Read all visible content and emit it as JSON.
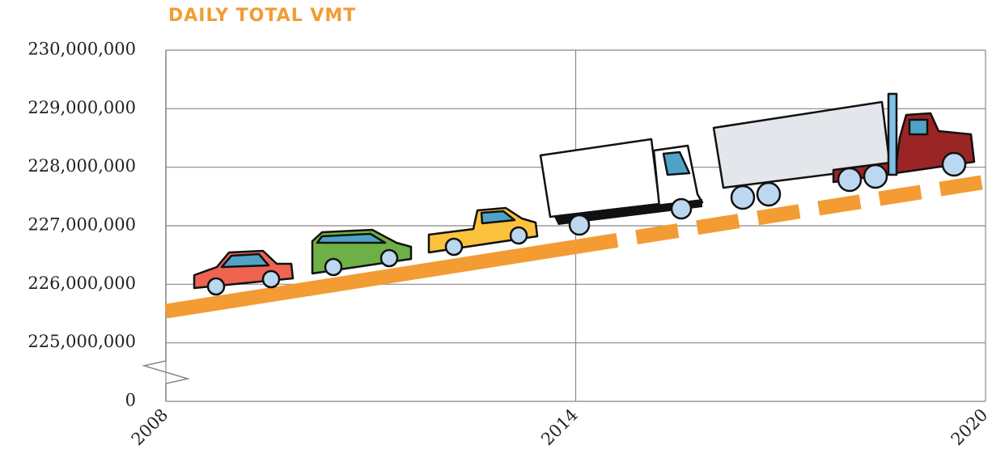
{
  "chart_data": {
    "type": "line",
    "title": "DAILY TOTAL VMT",
    "xlim": [
      2008,
      2020
    ],
    "xticks": [
      2008,
      2014,
      2020
    ],
    "ylim": [
      0,
      230000000
    ],
    "y_break": [
      0,
      225000000
    ],
    "yticks": [
      0,
      {
        "value": 225000000,
        "label": "225,000,000"
      },
      {
        "value": 226000000,
        "label": "226,000,000"
      },
      {
        "value": 227000000,
        "label": "227,000,000"
      },
      {
        "value": 228000000,
        "label": "228,000,000"
      },
      {
        "value": 229000000,
        "label": "229,000,000"
      },
      {
        "value": 230000000,
        "label": "230,000,000"
      }
    ],
    "grid": true,
    "series": [
      {
        "color": "#f39c33",
        "style": "solid",
        "x": [
          2008,
          2014
        ],
        "values": [
          225540000,
          226640000
        ]
      },
      {
        "color": "#f39c33",
        "style": "dashed",
        "x": [
          2014,
          2020
        ],
        "values": [
          226640000,
          227750000
        ]
      }
    ]
  }
}
